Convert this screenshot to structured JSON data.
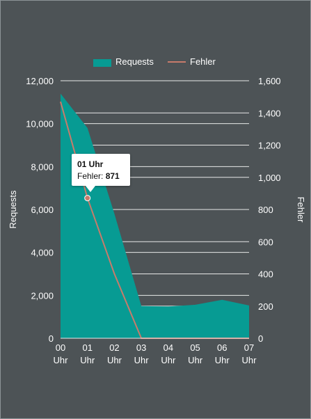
{
  "chart_data": {
    "type": "area",
    "categories": [
      "00 Uhr",
      "01 Uhr",
      "02 Uhr",
      "03 Uhr",
      "04 Uhr",
      "05 Uhr",
      "06 Uhr",
      "07 Uhr"
    ],
    "series": [
      {
        "name": "Requests",
        "kind": "area",
        "axis": "left",
        "color": "#079b93",
        "values": [
          11400,
          9800,
          5800,
          1500,
          1480,
          1560,
          1790,
          1530
        ]
      },
      {
        "name": "Fehler",
        "kind": "line",
        "axis": "right",
        "color": "#c87b6b",
        "values": [
          1470,
          871,
          400,
          0,
          0,
          0,
          0,
          0
        ]
      }
    ],
    "ylabel": "Requests",
    "y2label": "Fehler",
    "ylim": [
      0,
      12000
    ],
    "y2lim": [
      0,
      1600
    ],
    "yticks": [
      "0",
      "2,000",
      "4,000",
      "6,000",
      "8,000",
      "10,000",
      "12,000"
    ],
    "y2ticks": [
      "0",
      "200",
      "400",
      "600",
      "800",
      "1,000",
      "1,200",
      "1,400",
      "1,600"
    ],
    "legend_position": "top-center",
    "grid": true,
    "tooltip": {
      "title": "01 Uhr",
      "series_label": "Fehler: ",
      "value": "871",
      "index": 1
    }
  },
  "colors": {
    "background": "#4d5356",
    "grid": "#e8e8e8",
    "text": "#ffffff"
  }
}
